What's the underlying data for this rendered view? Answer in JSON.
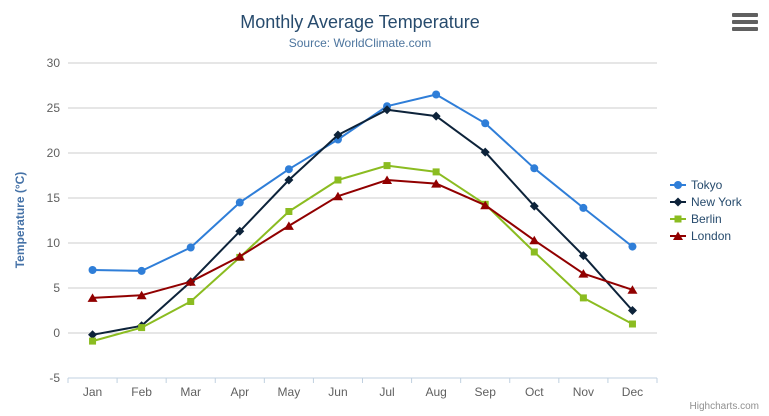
{
  "chart_data": {
    "type": "line",
    "title": "Monthly Average Temperature",
    "subtitle": "Source: WorldClimate.com",
    "categories": [
      "Jan",
      "Feb",
      "Mar",
      "Apr",
      "May",
      "Jun",
      "Jul",
      "Aug",
      "Sep",
      "Oct",
      "Nov",
      "Dec"
    ],
    "series": [
      {
        "name": "Tokyo",
        "color": "#2f7ed8",
        "marker": "circle",
        "values": [
          7.0,
          6.9,
          9.5,
          14.5,
          18.2,
          21.5,
          25.2,
          26.5,
          23.3,
          18.3,
          13.9,
          9.6
        ]
      },
      {
        "name": "New York",
        "color": "#0d233a",
        "marker": "diamond",
        "values": [
          -0.2,
          0.8,
          5.7,
          11.3,
          17.0,
          22.0,
          24.8,
          24.1,
          20.1,
          14.1,
          8.6,
          2.5
        ]
      },
      {
        "name": "Berlin",
        "color": "#8bbc21",
        "marker": "square",
        "values": [
          -0.9,
          0.6,
          3.5,
          8.4,
          13.5,
          17.0,
          18.6,
          17.9,
          14.3,
          9.0,
          3.9,
          1.0
        ]
      },
      {
        "name": "London",
        "color": "#910000",
        "marker": "triangle",
        "values": [
          3.9,
          4.2,
          5.7,
          8.5,
          11.9,
          15.2,
          17.0,
          16.6,
          14.2,
          10.3,
          6.6,
          4.8
        ]
      }
    ],
    "xlabel": "",
    "ylabel": "Temperature (°C)",
    "ylim": [
      -5,
      30
    ],
    "ytick_step": 5,
    "grid": true,
    "legend_position": "right",
    "colors": {
      "title": "#274b6d",
      "subtitle": "#4d759e",
      "axis_title": "#4572a7",
      "tick_label": "#606060",
      "gridline": "#cccccc",
      "axis_line": "#c0d0e0",
      "credits_text": "#909090"
    },
    "credits": "Highcharts.com"
  }
}
